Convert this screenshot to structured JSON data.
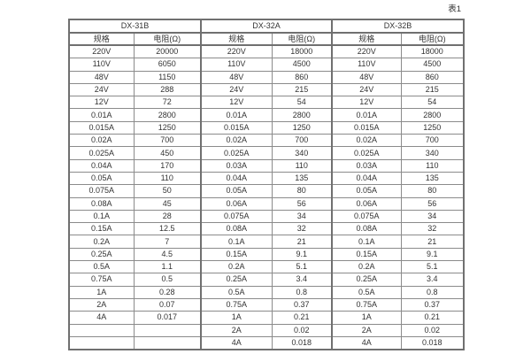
{
  "caption": "表1",
  "table": {
    "groups": [
      {
        "name": "DX-31B",
        "spec_header": "规格",
        "resistance_header": "电阻(Ω)"
      },
      {
        "name": "DX-32A",
        "spec_header": "规格",
        "resistance_header": "电阻(Ω)"
      },
      {
        "name": "DX-32B",
        "spec_header": "规格",
        "resistance_header": "电阻(Ω)"
      }
    ],
    "rows": [
      [
        "220V",
        "20000",
        "220V",
        "18000",
        "220V",
        "18000"
      ],
      [
        "110V",
        "6050",
        "110V",
        "4500",
        "110V",
        "4500"
      ],
      [
        "48V",
        "1150",
        "48V",
        "860",
        "48V",
        "860"
      ],
      [
        "24V",
        "288",
        "24V",
        "215",
        "24V",
        "215"
      ],
      [
        "12V",
        "72",
        "12V",
        "54",
        "12V",
        "54"
      ],
      [
        "0.01A",
        "2800",
        "0.01A",
        "2800",
        "0.01A",
        "2800"
      ],
      [
        "0.015A",
        "1250",
        "0.015A",
        "1250",
        "0.015A",
        "1250"
      ],
      [
        "0.02A",
        "700",
        "0.02A",
        "700",
        "0.02A",
        "700"
      ],
      [
        "0.025A",
        "450",
        "0.025A",
        "340",
        "0.025A",
        "340"
      ],
      [
        "0.04A",
        "170",
        "0.03A",
        "110",
        "0.03A",
        "110"
      ],
      [
        "0.05A",
        "110",
        "0.04A",
        "135",
        "0.04A",
        "135"
      ],
      [
        "0.075A",
        "50",
        "0.05A",
        "80",
        "0.05A",
        "80"
      ],
      [
        "0.08A",
        "45",
        "0.06A",
        "56",
        "0.06A",
        "56"
      ],
      [
        "0.1A",
        "28",
        "0.075A",
        "34",
        "0.075A",
        "34"
      ],
      [
        "0.15A",
        "12.5",
        "0.08A",
        "32",
        "0.08A",
        "32"
      ],
      [
        "0.2A",
        "7",
        "0.1A",
        "21",
        "0.1A",
        "21"
      ],
      [
        "0.25A",
        "4.5",
        "0.15A",
        "9.1",
        "0.15A",
        "9.1"
      ],
      [
        "0.5A",
        "1.1",
        "0.2A",
        "5.1",
        "0.2A",
        "5.1"
      ],
      [
        "0.75A",
        "0.5",
        "0.25A",
        "3.4",
        "0.25A",
        "3.4"
      ],
      [
        "1A",
        "0.28",
        "0.5A",
        "0.8",
        "0.5A",
        "0.8"
      ],
      [
        "2A",
        "0.07",
        "0.75A",
        "0.37",
        "0.75A",
        "0.37"
      ],
      [
        "4A",
        "0.017",
        "1A",
        "0.21",
        "1A",
        "0.21"
      ],
      [
        "",
        "",
        "2A",
        "0.02",
        "2A",
        "0.02"
      ],
      [
        "",
        "",
        "4A",
        "0.018",
        "4A",
        "0.018"
      ]
    ]
  },
  "colors": {
    "background": "#ffffff",
    "border_inner": "#8b8b8b",
    "border_outer": "#707070",
    "text": "#333333"
  }
}
